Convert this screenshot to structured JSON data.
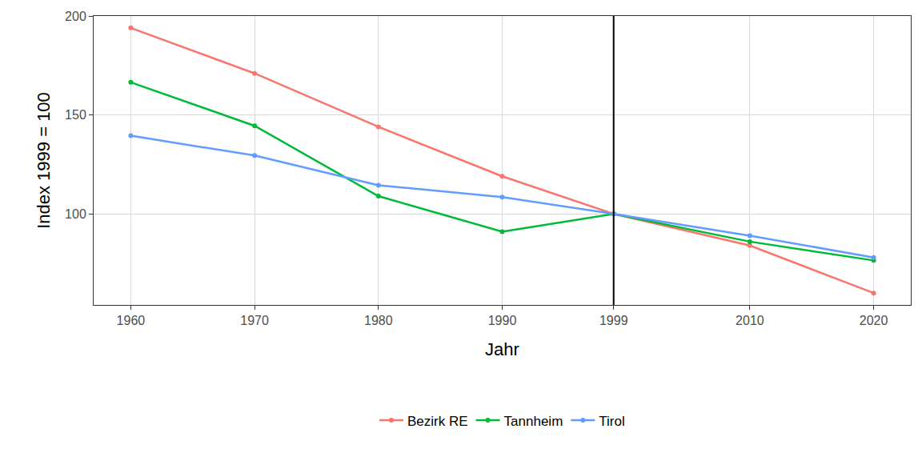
{
  "chart_data": {
    "type": "line",
    "x_label": "Jahr",
    "y_label": "Index 1999 = 100",
    "x": [
      1960,
      1970,
      1980,
      1990,
      1999,
      2010,
      2020
    ],
    "series": [
      {
        "name": "Bezirk RE",
        "color": "#F8766D",
        "marker": "circle",
        "values": [
          194,
          171,
          144,
          119,
          100,
          84,
          60
        ]
      },
      {
        "name": "Tannheim",
        "color": "#00BA38",
        "marker": "circle",
        "values": [
          166.5,
          144.5,
          109,
          91,
          100,
          86,
          76.5
        ]
      },
      {
        "name": "Tirol",
        "color": "#619CFF",
        "marker": "circle",
        "values": [
          139.5,
          129.5,
          114.5,
          108.5,
          100,
          89,
          78
        ]
      }
    ],
    "xlim": [
      1957,
      2023
    ],
    "xticks": [
      1960,
      1970,
      1980,
      1990,
      1999,
      2010,
      2020
    ],
    "ylim": [
      54,
      200
    ],
    "yticks": [
      100,
      150,
      200
    ],
    "vline": 1999,
    "grid": true,
    "legend": "bottom"
  }
}
